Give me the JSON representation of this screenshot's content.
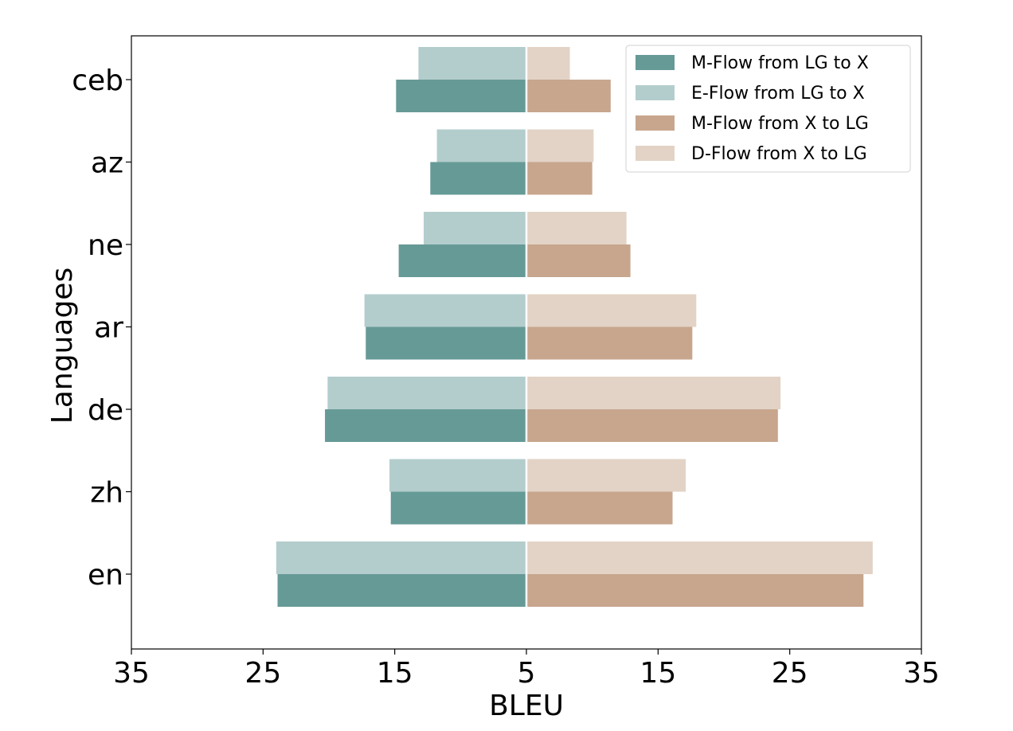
{
  "chart_data": {
    "type": "bar",
    "orientation": "horizontal-diverging",
    "xlabel": "BLEU",
    "ylabel": "Languages",
    "x_tick_labels": [
      "35",
      "25",
      "15",
      "5",
      "15",
      "25",
      "35"
    ],
    "xlim": [
      -35,
      35
    ],
    "categories": [
      "ceb",
      "az",
      "ne",
      "ar",
      "de",
      "zh",
      "en"
    ],
    "series": [
      {
        "name": "M-Flow from LG to X",
        "color": "#669a96",
        "side": "left",
        "values": [
          14.9,
          12.3,
          14.7,
          17.2,
          20.3,
          15.3,
          23.9
        ]
      },
      {
        "name": "E-Flow from LG to X",
        "color": "#b3cdcc",
        "side": "left",
        "values": [
          13.2,
          11.8,
          12.8,
          17.3,
          20.1,
          15.4,
          24.0
        ]
      },
      {
        "name": "M-Flow from X to LG",
        "color": "#c7a68d",
        "side": "right",
        "values": [
          11.4,
          10.0,
          12.9,
          17.6,
          24.1,
          16.1,
          30.6
        ]
      },
      {
        "name": "D-Flow from X to LG",
        "color": "#e2d3c6",
        "side": "right",
        "values": [
          8.3,
          10.1,
          12.6,
          17.9,
          24.3,
          17.1,
          31.3
        ]
      }
    ],
    "grid": false,
    "legend_position": "top-right"
  }
}
